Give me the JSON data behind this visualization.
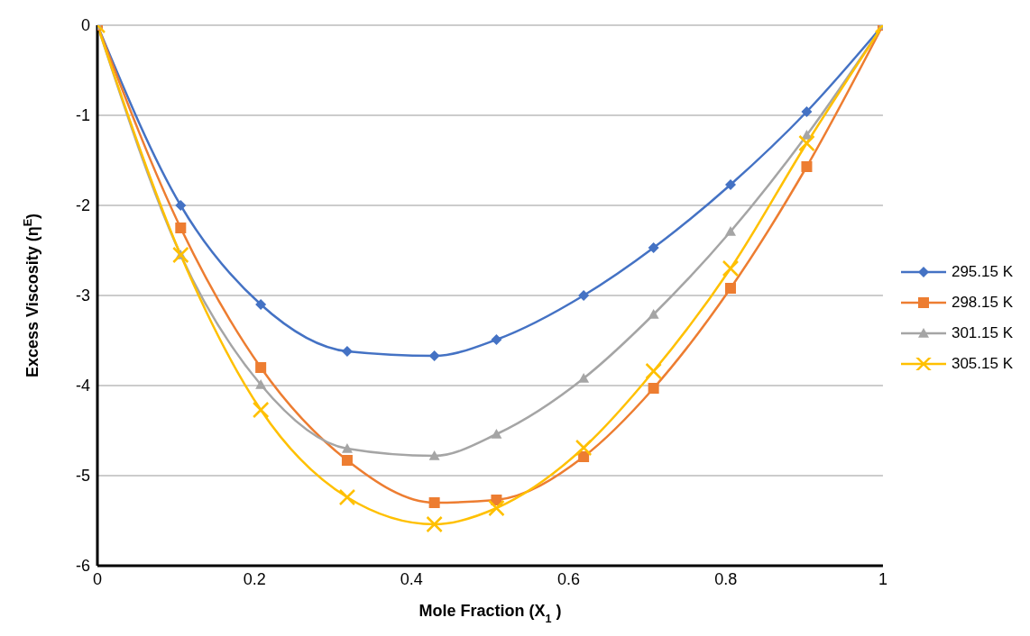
{
  "chart_data": {
    "type": "line",
    "xlabel": "Mole Fraction (X$_{1}$ )",
    "ylabel": "Excess Viscosity (η$^{E}$)",
    "x": [
      0,
      0.106,
      0.208,
      0.318,
      0.429,
      0.508,
      0.619,
      0.708,
      0.806,
      0.903,
      1
    ],
    "series": [
      {
        "name": "295.15 K",
        "color": "#4472c4",
        "marker": "diamond",
        "values": [
          0,
          -2.0,
          -3.1,
          -3.62,
          -3.67,
          -3.49,
          -3.0,
          -2.47,
          -1.77,
          -0.96,
          0
        ]
      },
      {
        "name": "298.15 K",
        "color": "#ed7d31",
        "marker": "square",
        "values": [
          0,
          -2.25,
          -3.8,
          -4.83,
          -5.3,
          -5.27,
          -4.79,
          -4.03,
          -2.92,
          -1.57,
          0
        ]
      },
      {
        "name": "301.15 K",
        "color": "#a5a5a5",
        "marker": "triangle",
        "values": [
          0,
          -2.55,
          -3.99,
          -4.7,
          -4.78,
          -4.54,
          -3.92,
          -3.21,
          -2.29,
          -1.22,
          0
        ]
      },
      {
        "name": "305.15 K",
        "color": "#ffc000",
        "marker": "cross",
        "values": [
          0,
          -2.55,
          -4.27,
          -5.24,
          -5.54,
          -5.36,
          -4.69,
          -3.84,
          -2.7,
          -1.31,
          0
        ]
      }
    ],
    "xlim": [
      0,
      1
    ],
    "xticks": [
      0,
      0.2,
      0.4,
      0.6,
      0.8,
      1
    ],
    "ylim": [
      -6,
      0
    ],
    "yticks": [
      0,
      -1,
      -2,
      -3,
      -4,
      -5,
      -6
    ],
    "grid": "y",
    "legend": "right",
    "line_style": "solid"
  }
}
